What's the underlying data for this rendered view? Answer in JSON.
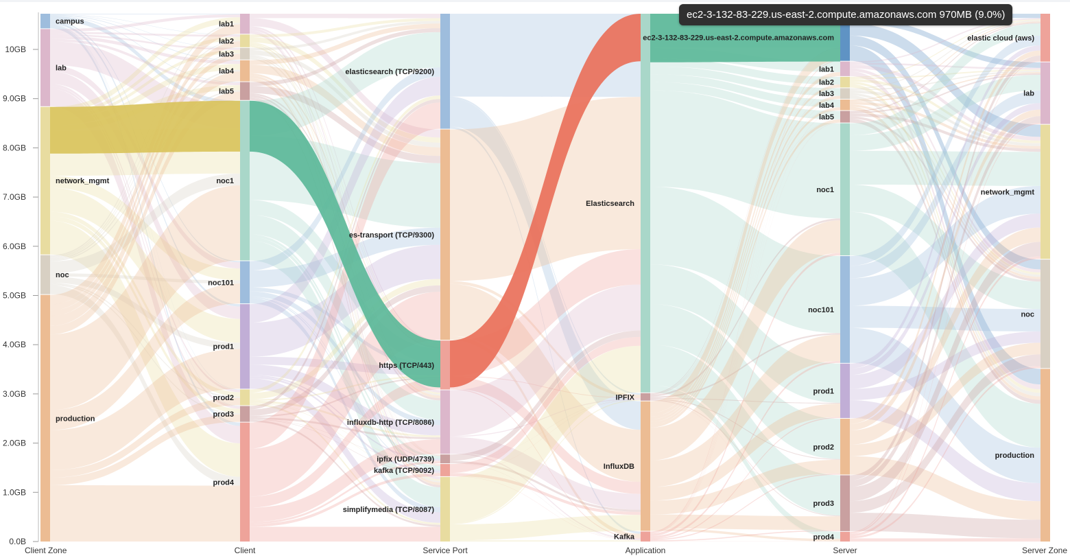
{
  "tooltip": {
    "text": "ec2-3-132-83-229.us-east-2.compute.amazonaws.com 970MB (9.0%)"
  },
  "chart_data": {
    "type": "sankey",
    "title": "",
    "yaxis": {
      "ticks": [
        "0.0B",
        "1.0GB",
        "2.0GB",
        "3.0GB",
        "4.0GB",
        "5.0GB",
        "6.0GB",
        "7.0GB",
        "8.0GB",
        "9.0GB",
        "10GB"
      ],
      "unit": "GB",
      "range": [
        0,
        10.75
      ]
    },
    "columns": [
      {
        "name": "Client Zone",
        "nodes": [
          {
            "label": "campus",
            "value": 0.3,
            "color": "#9ebddd"
          },
          {
            "label": "lab",
            "value": 1.58,
            "color": "#dcb7cb"
          },
          {
            "label": "network_mgmt",
            "value": 3.02,
            "color": "#e8dca0"
          },
          {
            "label": "noc",
            "value": 0.8,
            "color": "#d8d0c3"
          },
          {
            "label": "production",
            "value": 5.05,
            "color": "#ecbc93"
          }
        ]
      },
      {
        "name": "Client",
        "nodes": [
          {
            "label": "lab1",
            "value": 0.38,
            "color": "#dcb7cb"
          },
          {
            "label": "lab2",
            "value": 0.24,
            "color": "#e8dca0"
          },
          {
            "label": "lab3",
            "value": 0.22,
            "color": "#d8d0c3"
          },
          {
            "label": "lab4",
            "value": 0.4,
            "color": "#ecbc93"
          },
          {
            "label": "lab5",
            "value": 0.34,
            "color": "#c9a0a0"
          },
          {
            "label": "noc1",
            "value": 3.02,
            "color": "#a9d7c9"
          },
          {
            "label": "noc101",
            "value": 0.8,
            "color": "#9ebddd"
          },
          {
            "label": "prod1",
            "value": 1.6,
            "color": "#c1aed6"
          },
          {
            "label": "prod2",
            "value": 0.3,
            "color": "#e8dca0"
          },
          {
            "label": "prod3",
            "value": 0.3,
            "color": "#c9a0a0"
          },
          {
            "label": "prod4",
            "value": 2.25,
            "color": "#eea39a"
          }
        ]
      },
      {
        "name": "Service Port",
        "nodes": [
          {
            "label": "elasticsearch (TCP/9200)",
            "value": 2.35,
            "color": "#9ebddd"
          },
          {
            "label": "es-transport (TCP/9300)",
            "value": 4.3,
            "color": "#ecbc93"
          },
          {
            "label": "https (TCP/443)",
            "value": 1.0,
            "color": "#eea39a"
          },
          {
            "label": "influxdb-http (TCP/8086)",
            "value": 1.3,
            "color": "#dcb7cb"
          },
          {
            "label": "ipfix (UDP/4739)",
            "value": 0.18,
            "color": "#c9a0a0"
          },
          {
            "label": "kafka (TCP/9092)",
            "value": 0.25,
            "color": "#eea39a"
          },
          {
            "label": "simplifymedia (TCP/8087)",
            "value": 1.32,
            "color": "#e8dca0"
          }
        ]
      },
      {
        "name": "Application",
        "nodes": [
          {
            "label": "Elasticsearch",
            "value": 7.6,
            "color": "#a9d7c9"
          },
          {
            "label": "IPFIX",
            "value": 0.15,
            "color": "#c9a0a0"
          },
          {
            "label": "InfluxDB",
            "value": 2.6,
            "color": "#ecbc93"
          },
          {
            "label": "Kafka",
            "value": 0.2,
            "color": "#eea39a"
          }
        ]
      },
      {
        "name": "Server",
        "nodes": [
          {
            "label": "ec2-3-132-83-229.us-east-2.compute.amazonaws.com",
            "value": 0.97,
            "color": "#5f93c4"
          },
          {
            "label": "lab1",
            "value": 0.3,
            "color": "#dcb7cb"
          },
          {
            "label": "lab2",
            "value": 0.22,
            "color": "#e8dca0"
          },
          {
            "label": "lab3",
            "value": 0.22,
            "color": "#d8d0c3"
          },
          {
            "label": "lab4",
            "value": 0.22,
            "color": "#ecbc93"
          },
          {
            "label": "lab5",
            "value": 0.24,
            "color": "#c9a0a0"
          },
          {
            "label": "noc1",
            "value": 2.72,
            "color": "#a9d7c9"
          },
          {
            "label": "noc101",
            "value": 2.2,
            "color": "#9ebddd"
          },
          {
            "label": "prod1",
            "value": 1.12,
            "color": "#c1aed6"
          },
          {
            "label": "prod2",
            "value": 1.15,
            "color": "#ecbc93"
          },
          {
            "label": "prod3",
            "value": 1.15,
            "color": "#c9a0a0"
          },
          {
            "label": "prod4",
            "value": 0.2,
            "color": "#eea39a"
          }
        ]
      },
      {
        "name": "Server Zone",
        "nodes": [
          {
            "label": "elastic cloud (aws)",
            "value": 0.97,
            "color": "#eea39a"
          },
          {
            "label": "lab",
            "value": 1.25,
            "color": "#dcb7cb"
          },
          {
            "label": "network_mgmt",
            "value": 2.72,
            "color": "#e8dca0"
          },
          {
            "label": "noc",
            "value": 2.2,
            "color": "#d8d0c3"
          },
          {
            "label": "production",
            "value": 3.5,
            "color": "#ecbc93"
          }
        ]
      }
    ],
    "highlighted_links": [
      {
        "from": "network_mgmt",
        "to": "noc1",
        "stage": "Client Zone→Client",
        "value": 0.95,
        "color": "#d9c35c"
      },
      {
        "from": "noc1",
        "to": "https (TCP/443)",
        "stage": "Client→Service Port",
        "value": 0.95,
        "color": "#5cb899"
      },
      {
        "from": "https (TCP/443)",
        "to": "Elasticsearch",
        "stage": "Service Port→Application",
        "value": 0.95,
        "color": "#e9705a"
      },
      {
        "from": "Elasticsearch",
        "to": "ec2-3-132-83-229.us-east-2.compute.amazonaws.com",
        "stage": "Application→Server",
        "value": 0.97,
        "color": "#5cb899"
      }
    ]
  }
}
